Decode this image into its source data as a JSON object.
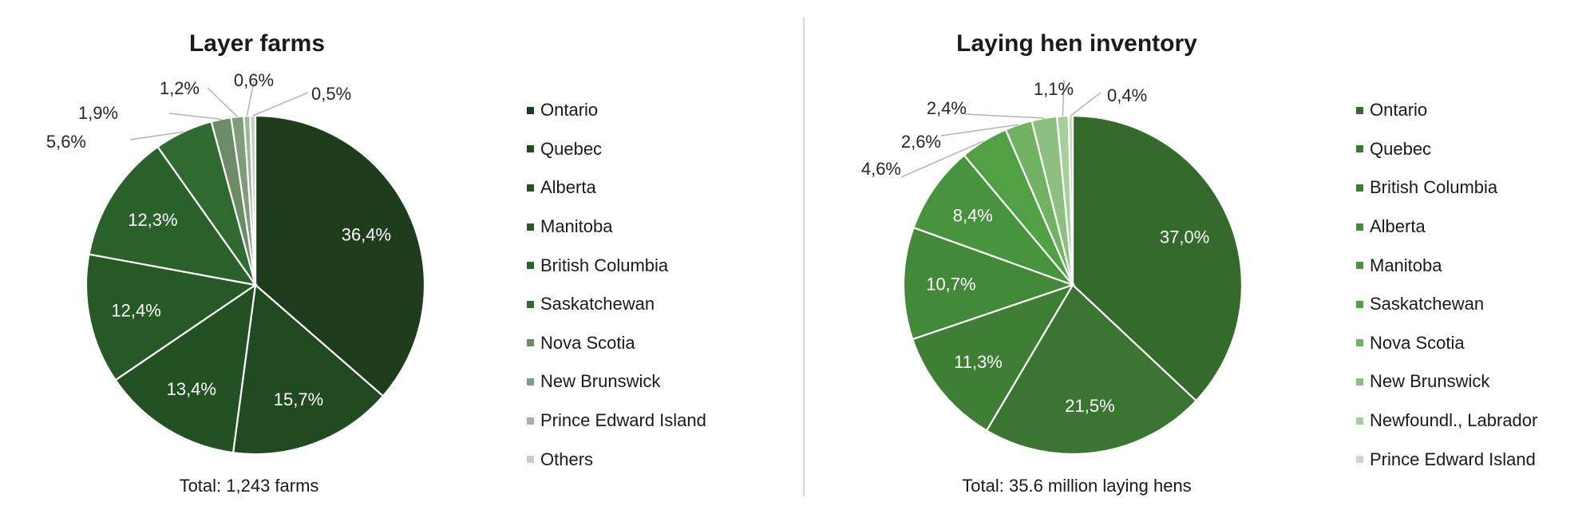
{
  "chart_data": [
    {
      "type": "pie",
      "title": "Layer farms",
      "total": "Total: 1,243 farms",
      "slices": [
        {
          "name": "Ontario",
          "value": 36.4,
          "label": "36,4%",
          "color": "#1e3d1c"
        },
        {
          "name": "Quebec",
          "value": 15.7,
          "label": "15,7%",
          "color": "#214a20"
        },
        {
          "name": "Alberta",
          "value": 13.4,
          "label": "13,4%",
          "color": "#245124"
        },
        {
          "name": "Manitoba",
          "value": 12.4,
          "label": "12,4%",
          "color": "#275927"
        },
        {
          "name": "British Columbia",
          "value": 12.3,
          "label": "12,3%",
          "color": "#2b612b"
        },
        {
          "name": "Saskatchewan",
          "value": 5.6,
          "label": "5,6%",
          "color": "#2f6b30"
        },
        {
          "name": "Nova Scotia",
          "value": 1.9,
          "label": "1,9%",
          "color": "#6b8c66"
        },
        {
          "name": "New Brunswick",
          "value": 1.2,
          "label": "1,2%",
          "color": "#7f9d7a"
        },
        {
          "name": "Prince Edward Island",
          "value": 0.6,
          "label": "0,6%",
          "color": "#9fb79b"
        },
        {
          "name": "Others",
          "value": 0.5,
          "label": "0,5%",
          "color": "#c2d1bf"
        }
      ]
    },
    {
      "type": "pie",
      "title": "Laying hen inventory",
      "total": "Total: 35.6 million laying hens",
      "slices": [
        {
          "name": "Ontario",
          "value": 37.0,
          "label": "37,0%",
          "color": "#356a2d"
        },
        {
          "name": "Quebec",
          "value": 21.5,
          "label": "21,5%",
          "color": "#3a7531"
        },
        {
          "name": "British Columbia",
          "value": 11.3,
          "label": "11,3%",
          "color": "#3e7e35"
        },
        {
          "name": "Alberta",
          "value": 10.7,
          "label": "10,7%",
          "color": "#43893a"
        },
        {
          "name": "Manitoba",
          "value": 8.4,
          "label": "8,4%",
          "color": "#48943e"
        },
        {
          "name": "Saskatchewan",
          "value": 4.6,
          "label": "4,6%",
          "color": "#52a044"
        },
        {
          "name": "Nova Scotia",
          "value": 2.6,
          "label": "2,6%",
          "color": "#71b263"
        },
        {
          "name": "New Brunswick",
          "value": 2.4,
          "label": "2,4%",
          "color": "#8dc080"
        },
        {
          "name": "Newfoundl., Labrador",
          "value": 1.1,
          "label": "1,1%",
          "color": "#a6cf9c"
        },
        {
          "name": "Prince Edward Island",
          "value": 0.4,
          "label": "0,4%",
          "color": "#c3deba"
        }
      ]
    }
  ]
}
